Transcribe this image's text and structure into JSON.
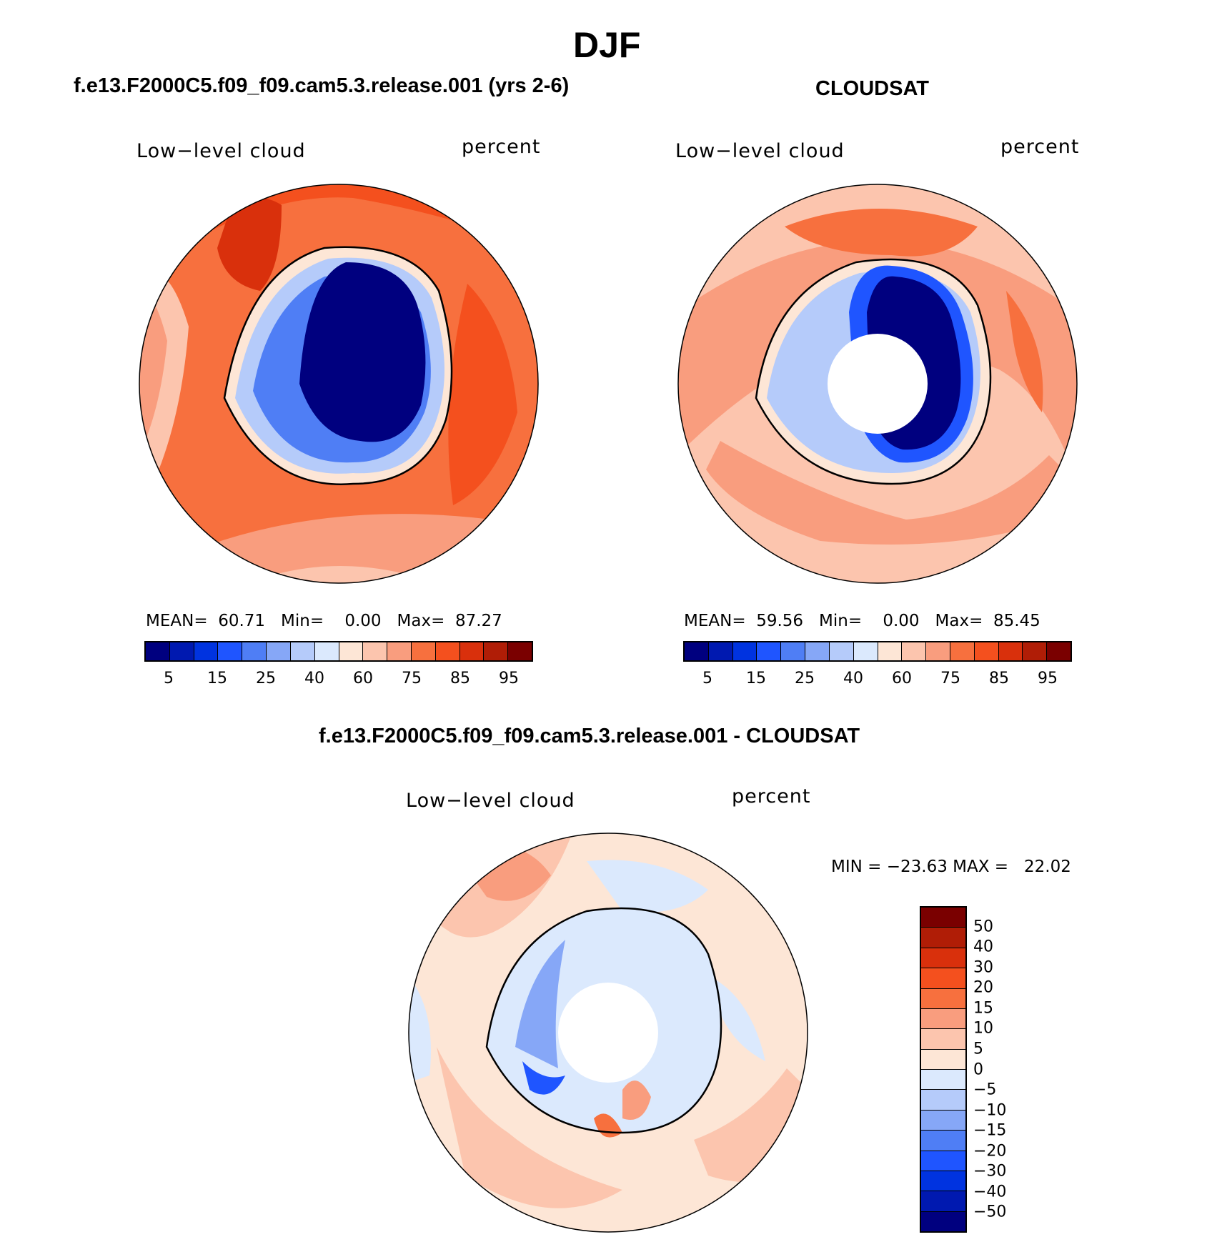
{
  "title": "DJF",
  "panels": [
    {
      "name": "model",
      "header": "f.e13.F2000C5.f09_f09.cam5.3.release.001 (yrs 2-6)",
      "variable": "Low−level cloud",
      "units": "percent",
      "stats": {
        "mean_label": "MEAN=",
        "mean": "60.71",
        "min_label": "Min=",
        "min": "0.00",
        "max_label": "Max=",
        "max": "87.27"
      }
    },
    {
      "name": "obs",
      "header": "CLOUDSAT",
      "variable": "Low−level cloud",
      "units": "percent",
      "stats": {
        "mean_label": "MEAN=",
        "mean": "59.56",
        "min_label": "Min=",
        "min": "0.00",
        "max_label": "Max=",
        "max": "85.45"
      }
    },
    {
      "name": "diff",
      "header": "f.e13.F2000C5.f09_f09.cam5.3.release.001 - CLOUDSAT",
      "variable": "Low−level cloud",
      "units": "percent",
      "minmax": "MIN = −23.63 MAX =   22.02"
    }
  ],
  "colorbar_abs": {
    "colors": [
      "#00007f",
      "#0019b0",
      "#0033e0",
      "#1f55ff",
      "#4f7ef5",
      "#86a7f7",
      "#b5cbfa",
      "#dbe9fd",
      "#fde6d6",
      "#fcc5ae",
      "#f99d7e",
      "#f7703e",
      "#f4501e",
      "#d9300c",
      "#b01d06",
      "#7a0000"
    ],
    "ticks": [
      "5",
      "15",
      "25",
      "40",
      "60",
      "75",
      "85",
      "95"
    ]
  },
  "colorbar_diff": {
    "colors": [
      "#7a0000",
      "#b01d06",
      "#d9300c",
      "#f4501e",
      "#f7703e",
      "#f99d7e",
      "#fcc5ae",
      "#fde6d6",
      "#dbe9fd",
      "#b5cbfa",
      "#86a7f7",
      "#4f7ef5",
      "#1f55ff",
      "#0033e0",
      "#0019b0",
      "#00007f"
    ],
    "ticks": [
      "50",
      "40",
      "30",
      "20",
      "15",
      "10",
      "5",
      "0",
      "−5",
      "−10",
      "−15",
      "−20",
      "−30",
      "−40",
      "−50"
    ]
  }
}
